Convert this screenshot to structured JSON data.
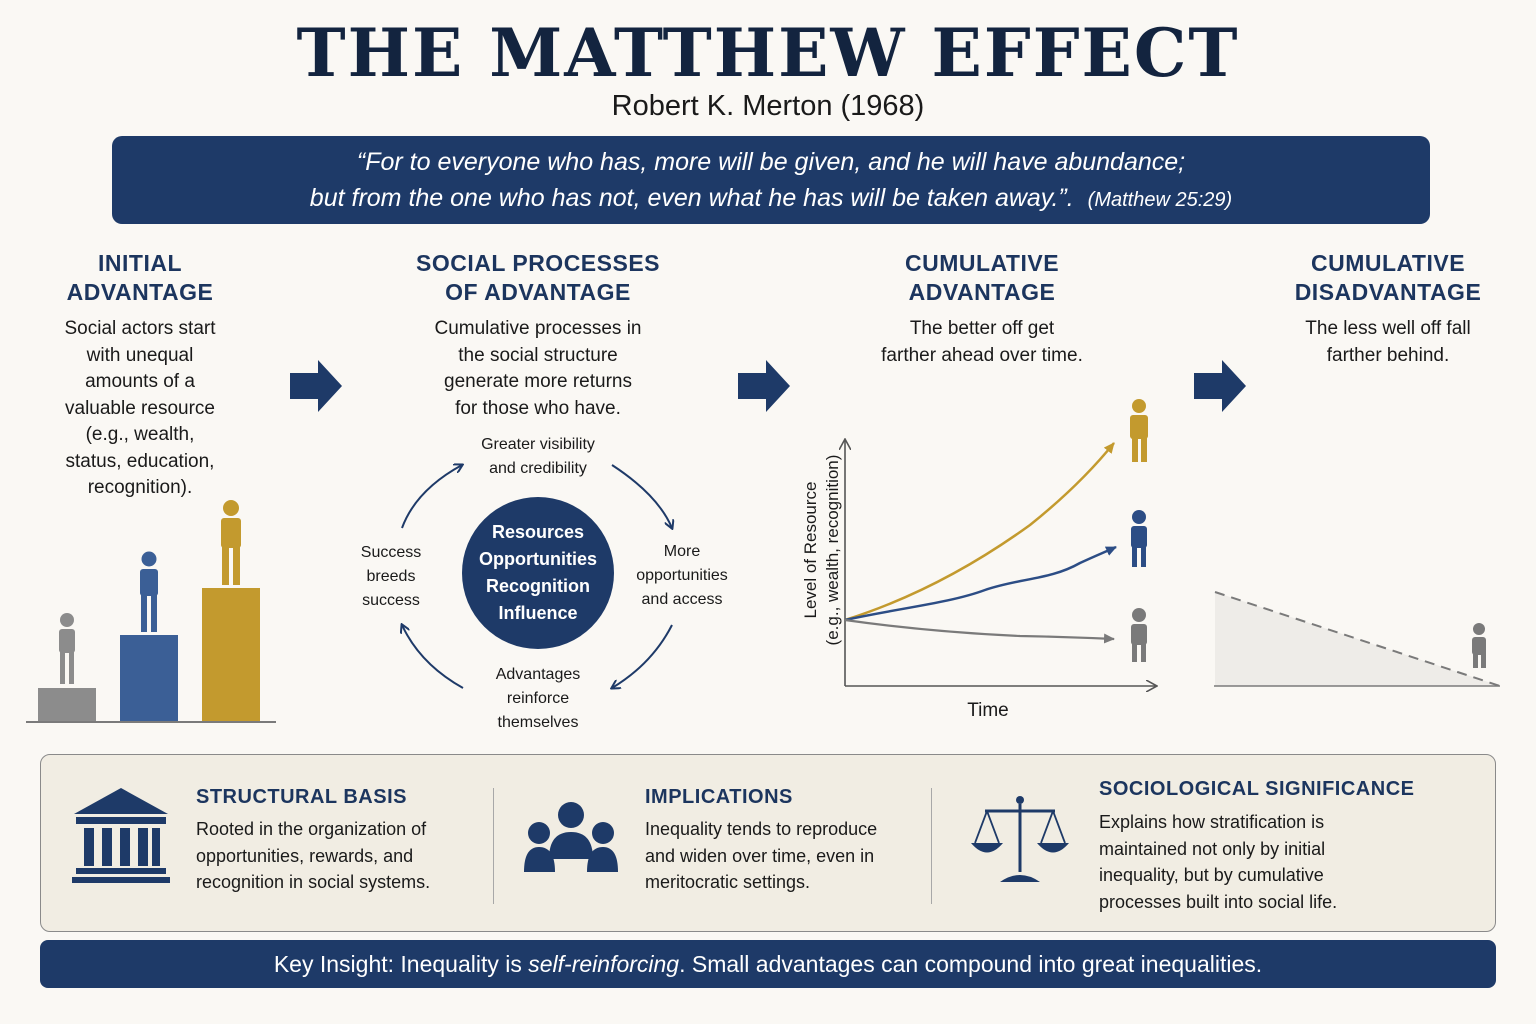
{
  "header": {
    "title": "THE MATTHEW EFFECT",
    "subtitle": "Robert K. Merton (1968)"
  },
  "quote": {
    "line1": "“For to everyone who has, more will be given, and he will have abundance;",
    "line2": "but from the one who has not, even what he has will be taken away.”.",
    "reference": "(Matthew 25:29)"
  },
  "columns": [
    {
      "heading_line1": "INITIAL",
      "heading_line2": "ADVANTAGE",
      "text_lines": [
        "Social actors start",
        "with unequal",
        "amounts of a",
        "valuable resource",
        "(e.g., wealth,",
        "status, education,",
        "recognition)."
      ]
    },
    {
      "heading_line1": "SOCIAL PROCESSES",
      "heading_line2": "OF ADVANTAGE",
      "text_lines": [
        "Cumulative processes in",
        "the social structure",
        "generate more returns",
        "for those who have."
      ]
    },
    {
      "heading_line1": "CUMULATIVE",
      "heading_line2": "ADVANTAGE",
      "text_lines": [
        "The better off get",
        "farther ahead over time."
      ]
    },
    {
      "heading_line1": "CUMULATIVE",
      "heading_line2": "DISADVANTAGE",
      "text_lines": [
        "The less well off fall",
        "farther behind."
      ]
    }
  ],
  "cycle": {
    "top_line1": "Greater visibility",
    "top_line2": "and credibility",
    "right_line1": "More",
    "right_line2": "opportunities",
    "right_line3": "and access",
    "bottom_line1": "Advantages",
    "bottom_line2": "reinforce",
    "bottom_line3": "themselves",
    "left_line1": "Success",
    "left_line2": "breeds",
    "left_line3": "success",
    "hub": [
      "Resources",
      "Opportunities",
      "Recognition",
      "Influence"
    ]
  },
  "chart": {
    "ylabel_line1": "Level of Resource",
    "ylabel_line2": "(e.g., wealth, recognition)",
    "xlabel": "Time"
  },
  "bottom": {
    "structural": {
      "heading": "STRUCTURAL BASIS",
      "lines": [
        "Rooted in the organization of",
        "opportunities, rewards, and",
        "recognition in social systems."
      ],
      "icon": "institution-icon"
    },
    "implications": {
      "heading": "IMPLICATIONS",
      "lines": [
        "Inequality tends to reproduce",
        "and widen over time, even in",
        "meritocratic settings."
      ],
      "icon": "group-icon"
    },
    "significance": {
      "heading": "SOCIOLOGICAL SIGNIFICANCE",
      "lines": [
        "Explains how stratification is",
        "maintained not only by initial",
        "inequality, but by cumulative",
        "processes built into social life."
      ],
      "icon": "scales-icon"
    }
  },
  "insight": {
    "prefix": "Key Insight: Inequality is ",
    "emphasis": "self-reinforcing",
    "suffix": ".  Small advantages can compound into great inequalities."
  },
  "colors": {
    "navy": "#1e3a68",
    "gold": "#c39a2e",
    "blue": "#3b5f96",
    "gray": "#8c8c8c"
  }
}
